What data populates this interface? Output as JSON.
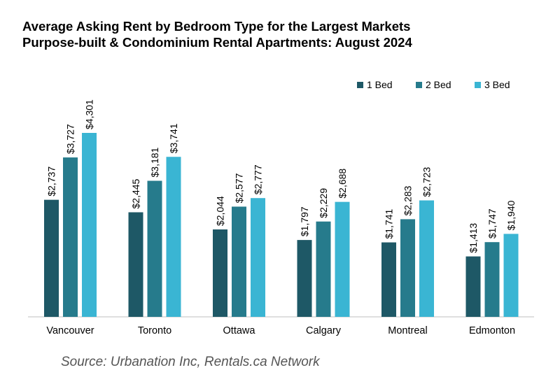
{
  "title_line1": "Average Asking Rent by Bedroom Type for the Largest Markets",
  "title_line2": "Purpose-built & Condominium Rental Apartments: August 2024",
  "source": "Source: Urbanation Inc, Rentals.ca Network",
  "chart_data": {
    "type": "bar",
    "title": "Average Asking Rent by Bedroom Type for the Largest Markets Purpose-built & Condominium Rental Apartments: August 2024",
    "categories": [
      "Vancouver",
      "Toronto",
      "Ottawa",
      "Calgary",
      "Montreal",
      "Edmonton"
    ],
    "series": [
      {
        "name": "1 Bed",
        "color": "#1e5866",
        "values": [
          2737,
          2445,
          2044,
          1797,
          1741,
          1413
        ],
        "labels": [
          "$2,737",
          "$2,445",
          "$2,044",
          "$1,797",
          "$1,741",
          "$1,413"
        ]
      },
      {
        "name": "2 Bed",
        "color": "#267b8c",
        "values": [
          3727,
          3181,
          2577,
          2229,
          2283,
          1747
        ],
        "labels": [
          "$3,727",
          "$3,181",
          "$2,577",
          "$2,229",
          "$2,283",
          "$1,747"
        ]
      },
      {
        "name": "3 Bed",
        "color": "#3ab5d3",
        "values": [
          4301,
          3741,
          2777,
          2688,
          2723,
          1940
        ],
        "labels": [
          "$4,301",
          "$3,741",
          "$2,777",
          "$2,688",
          "$2,723",
          "$1,940"
        ]
      }
    ],
    "ylim": [
      0,
      4301
    ],
    "grid": false,
    "legend": "top-right",
    "data_labels": true,
    "xlabel": "",
    "ylabel": ""
  }
}
